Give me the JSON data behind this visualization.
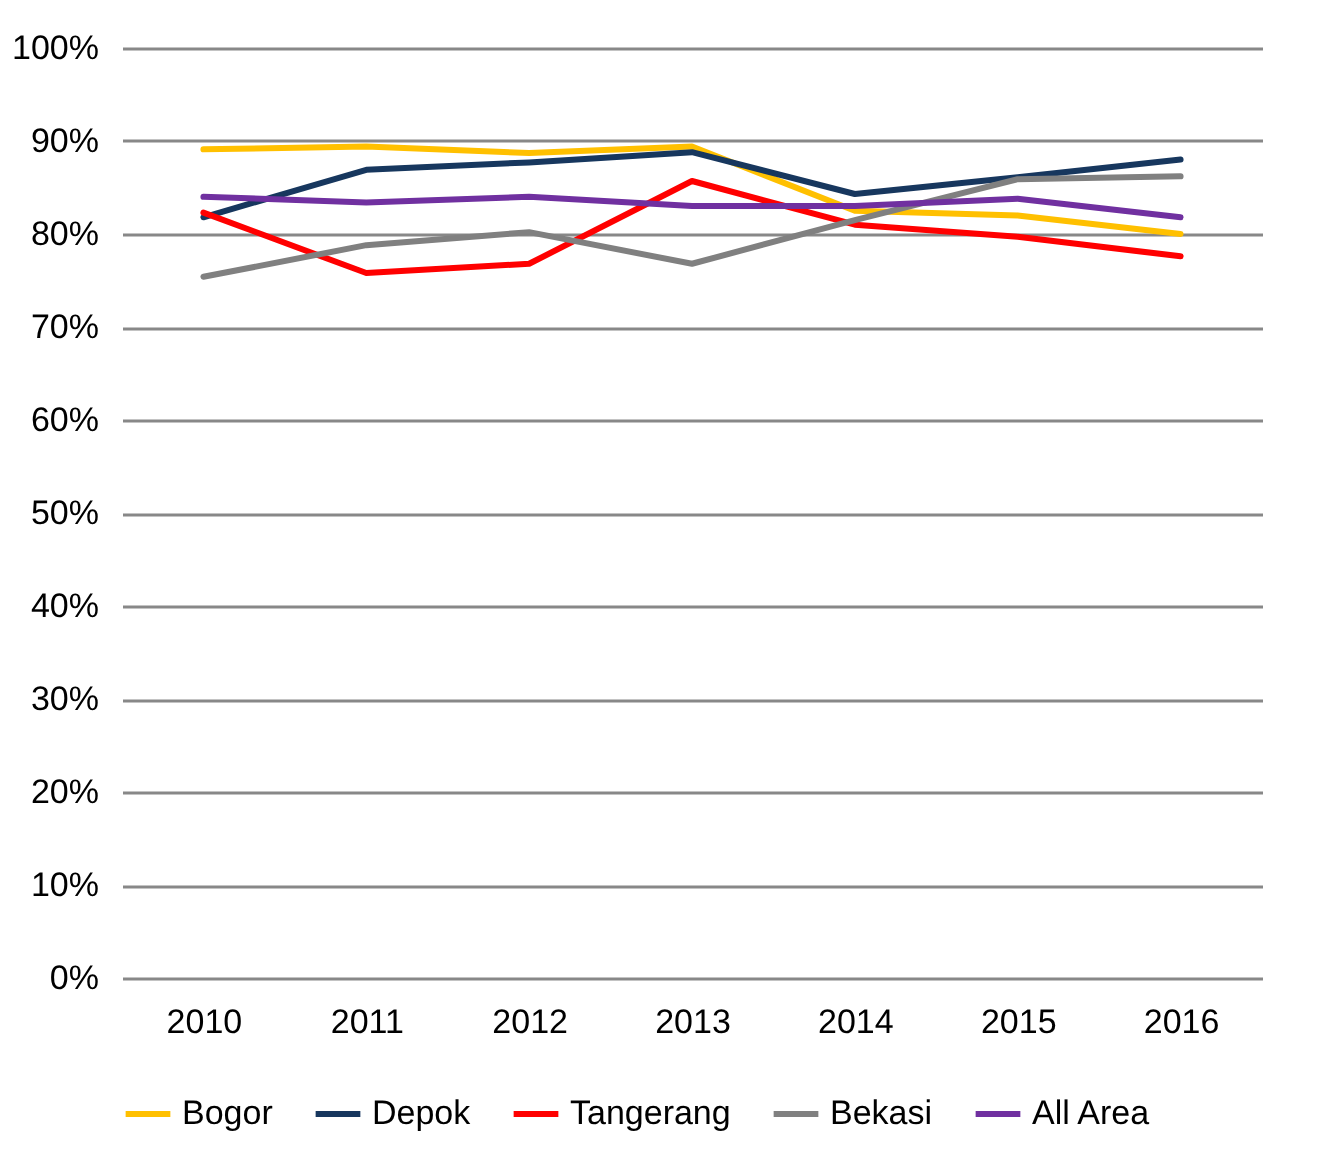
{
  "chart_data": {
    "type": "line",
    "categories": [
      "2010",
      "2011",
      "2012",
      "2013",
      "2014",
      "2015",
      "2016"
    ],
    "series": [
      {
        "name": "Bogor",
        "color": "#ffc000",
        "values": [
          89.1,
          89.4,
          88.7,
          89.4,
          82.5,
          82.0,
          80.0
        ]
      },
      {
        "name": "Depok",
        "color": "#17375e",
        "values": [
          81.8,
          86.9,
          87.7,
          88.8,
          84.3,
          86.1,
          88.0
        ]
      },
      {
        "name": "Tangerang",
        "color": "#ff0000",
        "values": [
          82.3,
          75.8,
          76.8,
          85.7,
          81.0,
          79.7,
          77.6
        ]
      },
      {
        "name": "Bekasi",
        "color": "#808080",
        "values": [
          75.4,
          78.8,
          80.2,
          76.8,
          81.5,
          85.9,
          86.2
        ]
      },
      {
        "name": "All Area",
        "color": "#7030a0",
        "values": [
          84.0,
          83.4,
          84.0,
          83.0,
          83.0,
          83.8,
          81.8
        ]
      }
    ],
    "ylim": [
      0,
      100
    ],
    "yticks": [
      {
        "value": 0,
        "label": "0%"
      },
      {
        "value": 10,
        "label": "10%"
      },
      {
        "value": 20,
        "label": "20%"
      },
      {
        "value": 30,
        "label": "30%"
      },
      {
        "value": 40,
        "label": "40%"
      },
      {
        "value": 50,
        "label": "50%"
      },
      {
        "value": 60,
        "label": "60%"
      },
      {
        "value": 70,
        "label": "70%"
      },
      {
        "value": 80,
        "label": "80%"
      },
      {
        "value": 90,
        "label": "90%"
      },
      {
        "value": 100,
        "label": "100%"
      }
    ],
    "grid": "y",
    "legend": "bottom",
    "marker": "none",
    "line_style": "solid"
  }
}
